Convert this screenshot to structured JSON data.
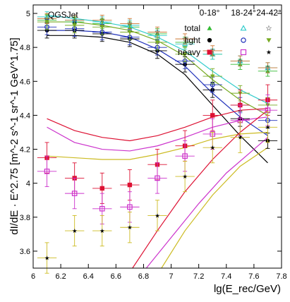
{
  "chart_data": {
    "type": "scatter",
    "model_label": "QGSJet",
    "xlabel": "lg(E_rec/GeV)",
    "ylabel": "dI/dE · E^2.75 [m^-2 s^-1 sr^-1 GeV^1.75]",
    "xlim": [
      6.0,
      7.8
    ],
    "ylim": [
      3.5,
      5.05
    ],
    "x_ticks": [
      "6",
      "6.2",
      "6.4",
      "6.6",
      "6.8",
      "7",
      "7.2",
      "7.4",
      "7.6",
      "7.8"
    ],
    "y_ticks": [
      "3.6",
      "3.8",
      "4",
      "4.2",
      "4.4",
      "4.6",
      "4.8",
      "5"
    ],
    "legend": {
      "columns": [
        "0-18°",
        "18-24°",
        "24-42°"
      ],
      "rows": [
        "total",
        "light",
        "heavy"
      ]
    },
    "colors": {
      "c0_total": "#33bb33",
      "c1_total": "#33cccc",
      "c2_total": "#cc7733",
      "light_c0": "#000000",
      "light_c1": "#2233bb",
      "light_c2": "#77aa22",
      "heavy_c0": "#dd1133",
      "heavy_c1": "#cc33cc",
      "heavy_c2": "#ccbb22"
    },
    "series": [
      {
        "row": "total",
        "column": "0-18°",
        "x": [
          6.1,
          6.3,
          6.5,
          6.7,
          6.9,
          7.1,
          7.3,
          7.5,
          7.7
        ],
        "y": [
          4.96,
          4.95,
          4.94,
          4.92,
          4.88,
          4.83,
          4.76,
          4.7,
          4.66
        ]
      },
      {
        "row": "total",
        "column": "18-24°",
        "x": [
          6.1,
          6.3,
          6.5,
          6.7,
          6.9,
          7.1,
          7.3,
          7.5,
          7.7
        ],
        "y": [
          4.98,
          4.96,
          4.95,
          4.93,
          4.87,
          4.82,
          4.76,
          4.72,
          4.68
        ]
      },
      {
        "row": "total",
        "column": "24-42°",
        "x": [
          6.1,
          6.3,
          6.5,
          6.7,
          6.9,
          7.1,
          7.3,
          7.5,
          7.7
        ],
        "y": [
          4.97,
          4.96,
          4.96,
          4.94,
          4.89,
          4.85,
          4.78,
          4.72,
          4.68
        ]
      },
      {
        "row": "light",
        "column": "0-18°",
        "x": [
          6.1,
          6.3,
          6.5,
          6.7,
          6.9,
          7.1,
          7.3,
          7.5,
          7.7
        ],
        "y": [
          4.9,
          4.9,
          4.88,
          4.85,
          4.78,
          4.7,
          4.55,
          4.38,
          4.25
        ]
      },
      {
        "row": "light",
        "column": "18-24°",
        "x": [
          6.1,
          6.3,
          6.5,
          6.7,
          6.9,
          7.1,
          7.3,
          7.5,
          7.7
        ],
        "y": [
          4.92,
          4.91,
          4.89,
          4.86,
          4.8,
          4.72,
          4.58,
          4.46,
          4.37
        ]
      },
      {
        "row": "light",
        "column": "24-42°",
        "x": [
          6.1,
          6.3,
          6.5,
          6.7,
          6.9,
          7.1,
          7.3,
          7.5,
          7.7
        ],
        "y": [
          4.95,
          4.93,
          4.92,
          4.89,
          4.83,
          4.76,
          4.63,
          4.53,
          4.46
        ]
      },
      {
        "row": "heavy",
        "column": "0-18°",
        "x": [
          6.1,
          6.3,
          6.5,
          6.7,
          6.9,
          7.1,
          7.3,
          7.5,
          7.7
        ],
        "y": [
          4.15,
          4.03,
          3.97,
          3.99,
          4.11,
          4.22,
          4.4,
          4.46,
          4.49
        ]
      },
      {
        "row": "heavy",
        "column": "18-24°",
        "x": [
          6.1,
          6.3,
          6.5,
          6.7,
          6.9,
          7.1,
          7.3,
          7.5,
          7.7
        ],
        "y": [
          4.07,
          3.94,
          3.85,
          3.86,
          4.03,
          4.16,
          4.29,
          4.37,
          4.43
        ]
      },
      {
        "row": "heavy",
        "column": "24-42°",
        "x": [
          6.1,
          6.3,
          6.5,
          6.7,
          6.9,
          7.1,
          7.3,
          7.5,
          7.7
        ],
        "y": [
          3.56,
          3.72,
          3.72,
          3.74,
          3.81,
          4.04,
          4.21,
          4.27,
          4.33
        ]
      }
    ],
    "model_bands": [
      {
        "name": "light-0",
        "color": "#000000",
        "x": [
          6.1,
          6.3,
          6.5,
          6.7,
          6.9,
          7.1,
          7.3,
          7.5,
          7.7
        ],
        "y": [
          4.87,
          4.87,
          4.86,
          4.83,
          4.76,
          4.64,
          4.46,
          4.28,
          4.12
        ]
      },
      {
        "name": "light-1",
        "color": "#2233bb",
        "x": [
          6.1,
          6.3,
          6.5,
          6.7,
          6.9,
          7.1,
          7.3,
          7.5,
          7.7
        ],
        "y": [
          4.9,
          4.9,
          4.89,
          4.86,
          4.79,
          4.69,
          4.53,
          4.39,
          4.28
        ]
      },
      {
        "name": "light-2",
        "color": "#77aa22",
        "x": [
          6.1,
          6.3,
          6.5,
          6.7,
          6.9,
          7.1,
          7.3,
          7.5,
          7.7
        ],
        "y": [
          4.95,
          4.95,
          4.93,
          4.9,
          4.84,
          4.75,
          4.61,
          4.49,
          4.4
        ]
      },
      {
        "name": "light-3",
        "color": "#33cccc",
        "x": [
          6.1,
          6.3,
          6.5,
          6.7,
          6.9,
          7.1,
          7.3,
          7.5,
          7.7
        ],
        "y": [
          4.99,
          4.97,
          4.95,
          4.92,
          4.86,
          4.78,
          4.66,
          4.55,
          4.47
        ]
      },
      {
        "name": "heavy-upper",
        "color": "#dd1133",
        "x": [
          6.1,
          6.3,
          6.5,
          6.7,
          6.9,
          7.1,
          7.3,
          7.5,
          7.7
        ],
        "y": [
          4.38,
          4.31,
          4.27,
          4.25,
          4.28,
          4.33,
          4.39,
          4.43,
          4.44
        ]
      },
      {
        "name": "heavy-mid",
        "color": "#cc33cc",
        "x": [
          6.1,
          6.3,
          6.5,
          6.7,
          6.9,
          7.1,
          7.3,
          7.5,
          7.7
        ],
        "y": [
          4.33,
          4.24,
          4.2,
          4.19,
          4.22,
          4.27,
          4.33,
          4.37,
          4.39
        ]
      },
      {
        "name": "heavy-low",
        "color": "#ccbb22",
        "x": [
          6.1,
          6.3,
          6.5,
          6.7,
          6.9,
          7.1,
          7.3,
          7.5,
          7.7
        ],
        "y": [
          4.16,
          4.15,
          4.14,
          4.14,
          4.17,
          4.21,
          4.26,
          4.29,
          4.3
        ]
      },
      {
        "name": "steep-red",
        "color": "#dd1133",
        "x": [
          6.72,
          6.9,
          7.1,
          7.3,
          7.5,
          7.7
        ],
        "y": [
          3.5,
          3.72,
          3.95,
          4.14,
          4.3,
          4.43
        ]
      },
      {
        "name": "steep-magenta",
        "color": "#cc33cc",
        "x": [
          6.82,
          7.0,
          7.2,
          7.4,
          7.6,
          7.7
        ],
        "y": [
          3.5,
          3.68,
          3.88,
          4.06,
          4.2,
          4.27
        ]
      },
      {
        "name": "steep-yellow",
        "color": "#ccbb22",
        "x": [
          6.93,
          7.1,
          7.3,
          7.5,
          7.7
        ],
        "y": [
          3.5,
          3.72,
          3.93,
          4.1,
          4.21
        ]
      }
    ]
  }
}
